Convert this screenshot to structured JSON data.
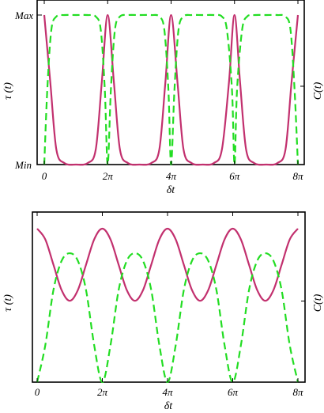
{
  "chart_data": [
    {
      "type": "line",
      "xlabel": "δt",
      "ylabel_left": "τ (t)",
      "ylabel_right": "C(t)",
      "xlim": [
        0,
        25.1327
      ],
      "ylim": [
        0,
        1
      ],
      "y_tick_labels": [
        "Min",
        "Max"
      ],
      "x_tick_labels": [
        "0",
        "2π",
        "4π",
        "6π",
        "8π"
      ],
      "x_tick_values": [
        0,
        6.2832,
        12.5664,
        18.8496,
        25.1327
      ],
      "series": [
        {
          "name": "",
          "style": "solid",
          "color": "#c2306e",
          "x": [
            0,
            0.6,
            1.2,
            2.0,
            3.1416,
            4.3,
            5.1,
            5.7,
            6.2832,
            6.9,
            7.5,
            8.3,
            9.4248,
            10.6,
            11.4,
            12.0,
            12.5664,
            13.2,
            13.8,
            14.6,
            15.708,
            16.8,
            17.6,
            18.3,
            18.8496,
            19.4,
            20.0,
            20.8,
            21.9911,
            23.1,
            23.9,
            24.5,
            25.1327
          ],
          "y": [
            1.0,
            0.55,
            0.1,
            0.01,
            0.0,
            0.01,
            0.1,
            0.55,
            1.0,
            0.55,
            0.1,
            0.01,
            0.0,
            0.01,
            0.1,
            0.55,
            1.0,
            0.55,
            0.1,
            0.01,
            0.0,
            0.01,
            0.1,
            0.55,
            1.0,
            0.55,
            0.1,
            0.01,
            0.0,
            0.01,
            0.1,
            0.55,
            1.0
          ]
        },
        {
          "name": "",
          "style": "dashed",
          "color": "#22dd22",
          "x": [
            0,
            0.3,
            0.7,
            1.2,
            2.0,
            3.1416,
            4.3,
            5.1,
            5.6,
            6.0,
            6.2832,
            6.6,
            7.0,
            7.5,
            8.3,
            9.4248,
            10.6,
            11.4,
            11.9,
            12.3,
            12.5664,
            12.9,
            13.3,
            13.8,
            14.6,
            15.708,
            16.8,
            17.6,
            18.1,
            18.6,
            18.8496,
            19.1,
            19.6,
            20.1,
            20.9,
            21.9911,
            23.1,
            23.9,
            24.4,
            24.8,
            25.1327
          ],
          "y": [
            0.0,
            0.5,
            0.9,
            0.99,
            1.0,
            1.0,
            1.0,
            0.99,
            0.9,
            0.5,
            0.0,
            0.5,
            0.9,
            0.99,
            1.0,
            1.0,
            1.0,
            0.99,
            0.9,
            0.5,
            0.0,
            0.5,
            0.9,
            0.99,
            1.0,
            1.0,
            1.0,
            0.99,
            0.9,
            0.5,
            0.0,
            0.5,
            0.9,
            0.99,
            1.0,
            1.0,
            1.0,
            0.99,
            0.9,
            0.5,
            0.0
          ]
        }
      ]
    },
    {
      "type": "line",
      "xlabel": "δt",
      "ylabel_left": "τ (t)",
      "ylabel_right": "C(t)",
      "xlim": [
        0,
        25.1327
      ],
      "ylim": [
        0,
        1
      ],
      "x_tick_labels": [
        "0",
        "2π",
        "4π",
        "6π",
        "8π"
      ],
      "x_tick_values": [
        0,
        6.2832,
        12.5664,
        18.8496,
        25.1327
      ],
      "series": [
        {
          "name": "",
          "style": "solid",
          "color": "#c2306e",
          "x": [
            0,
            0.785,
            1.571,
            2.356,
            3.142,
            3.927,
            4.712,
            5.498,
            6.283,
            7.069,
            7.854,
            8.639,
            9.425,
            10.21,
            10.996,
            11.781,
            12.566,
            13.352,
            14.137,
            14.923,
            15.708,
            16.493,
            17.279,
            18.064,
            18.85,
            19.635,
            20.42,
            21.206,
            21.991,
            22.777,
            23.562,
            24.347,
            25.133
          ],
          "y": [
            1.0,
            0.93,
            0.765,
            0.6,
            0.53,
            0.6,
            0.765,
            0.93,
            1.0,
            0.93,
            0.765,
            0.6,
            0.53,
            0.6,
            0.765,
            0.93,
            1.0,
            0.93,
            0.765,
            0.6,
            0.53,
            0.6,
            0.765,
            0.93,
            1.0,
            0.93,
            0.765,
            0.6,
            0.53,
            0.6,
            0.765,
            0.93,
            1.0
          ]
        },
        {
          "name": "",
          "style": "dashed",
          "color": "#22dd22",
          "x": [
            0,
            0.785,
            1.571,
            2.356,
            3.142,
            3.927,
            4.712,
            5.498,
            6.283,
            7.069,
            7.854,
            8.639,
            9.425,
            10.21,
            10.996,
            11.781,
            12.566,
            13.352,
            14.137,
            14.923,
            15.708,
            16.493,
            17.279,
            18.064,
            18.85,
            19.635,
            20.42,
            21.206,
            21.991,
            22.777,
            23.562,
            24.347,
            25.133
          ],
          "y": [
            0.0,
            0.24,
            0.6,
            0.79,
            0.84,
            0.79,
            0.6,
            0.24,
            0.0,
            0.24,
            0.6,
            0.79,
            0.84,
            0.79,
            0.6,
            0.24,
            0.0,
            0.24,
            0.6,
            0.79,
            0.84,
            0.79,
            0.6,
            0.24,
            0.0,
            0.24,
            0.6,
            0.79,
            0.84,
            0.79,
            0.6,
            0.24,
            0.0
          ]
        }
      ]
    }
  ]
}
